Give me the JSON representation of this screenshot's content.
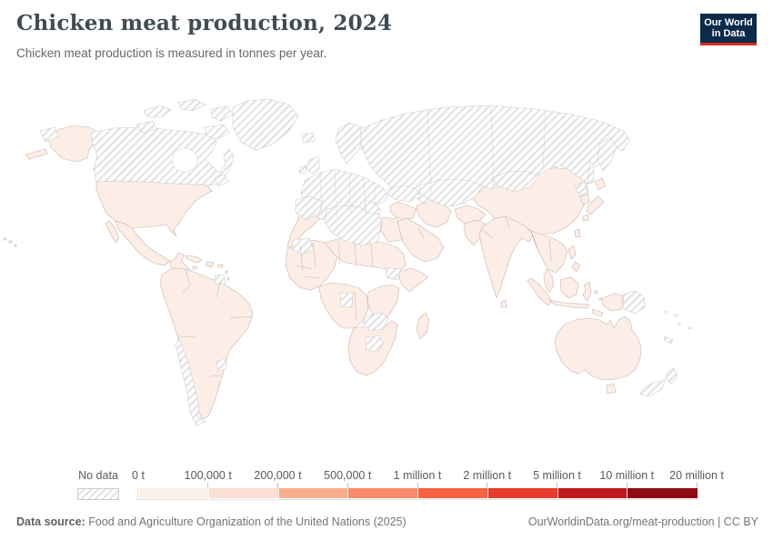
{
  "header": {
    "title": "Chicken meat production, 2024",
    "subtitle": "Chicken meat production is measured in tonnes per year.",
    "logo": {
      "line1": "Our World",
      "line2": "in Data"
    }
  },
  "legend": {
    "no_data_label": "No data",
    "bins": [
      {
        "label": "0 t",
        "color": "#fcf0ea"
      },
      {
        "label": "100,000 t",
        "color": "#fbdfd2"
      },
      {
        "label": "200,000 t",
        "color": "#f9ae8e"
      },
      {
        "label": "500,000 t",
        "color": "#fa8c6c"
      },
      {
        "label": "1 million t",
        "color": "#f7623f"
      },
      {
        "label": "2 million t",
        "color": "#e73b2b"
      },
      {
        "label": "5 million t",
        "color": "#c0171f"
      },
      {
        "label": "10 million t",
        "color": "#8e0b12"
      },
      {
        "label": "20 million t",
        "color": null
      }
    ]
  },
  "footer": {
    "source_label": "Data source:",
    "source_text": " Food and Agriculture Organization of the United Nations (2025)",
    "link_text": "OurWorldinData.org/meat-production | CC BY"
  },
  "colors": {
    "title": "#3f4c53",
    "subtitle": "#676767",
    "legend_label": "#5b5b5b",
    "footer": "#757575",
    "logo_bg": "#0b2b4b",
    "logo_bar": "#dc2a20",
    "land_fill": "#fceee7",
    "land_border": "#c7b6ad",
    "nodata_border": "#cfcfcf",
    "hatch_line": "#dcdcdc",
    "ocean": "#ffffff"
  },
  "chart_data": {
    "type": "choropleth-map",
    "title": "Chicken meat production, 2024",
    "subtitle": "Chicken meat production is measured in tonnes per year.",
    "year": 2024,
    "unit": "tonnes per year",
    "legend_bins": [
      {
        "threshold": "0 t",
        "band_color": "#fcf0ea"
      },
      {
        "threshold": "100,000 t",
        "band_color": "#fbdfd2"
      },
      {
        "threshold": "200,000 t",
        "band_color": "#f9ae8e"
      },
      {
        "threshold": "500,000 t",
        "band_color": "#fa8c6c"
      },
      {
        "threshold": "1 million t",
        "band_color": "#f7623f"
      },
      {
        "threshold": "2 million t",
        "band_color": "#e73b2b"
      },
      {
        "threshold": "5 million t",
        "band_color": "#c0171f"
      },
      {
        "threshold": "10 million t",
        "band_color": "#8e0b12"
      },
      {
        "threshold": "20 million t",
        "band_color": null
      }
    ],
    "shading_observation": "All countries with data are shaded in the lightest (0 t - 100,000 t) tint; remaining regions are hatched as No data.",
    "regions_with_data": [
      "United States (incl. Alaska, Hawaii)",
      "Mexico",
      "Central America",
      "Cuba and Caribbean islands",
      "South America (except Chile, Uruguay, French Guiana)",
      "Morocco and Western Sahara",
      "Egypt",
      "West Africa",
      "Sahel and Sudan",
      "Horn of Africa",
      "Central Africa",
      "East Africa",
      "Southern Africa",
      "Madagascar",
      "Levant and Iraq",
      "Arabian Peninsula",
      "Iran",
      "Afghanistan",
      "Pakistan",
      "India",
      "Sri Lanka",
      "China",
      "South Korea",
      "Japan",
      "Taiwan",
      "Mainland Southeast Asia",
      "Indonesia",
      "Philippines",
      "Western New Guinea",
      "Australia",
      "Tasmania"
    ],
    "regions_no_data": [
      "Canada",
      "Greenland",
      "Iceland",
      "United Kingdom",
      "Ireland",
      "Europe (mainland)",
      "Scandinavia",
      "Russia",
      "Central Asia",
      "Mongolia",
      "Turkey",
      "North Korea",
      "Algeria and Libya",
      "Mauritania",
      "South Sudan",
      "Gabon",
      "Zambia",
      "Botswana",
      "Chile",
      "Uruguay",
      "French Guiana",
      "Papua New Guinea",
      "New Zealand",
      "Pacific islands"
    ]
  }
}
